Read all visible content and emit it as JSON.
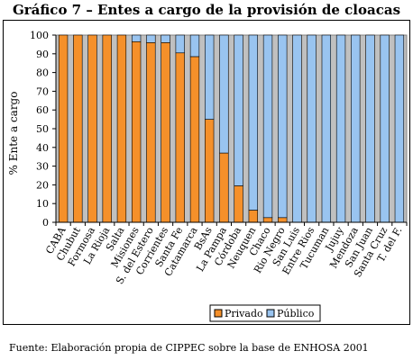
{
  "title": "Gráfico 7 – Entes a cargo de la provisión de cloacas",
  "source": "Fuente: Elaboración propia de CIPPEC sobre la base de ENHOSA 2001",
  "chart_data": {
    "type": "bar",
    "stacked": true,
    "title": "Gráfico 7 – Entes a cargo de la provisión de cloacas",
    "xlabel": "",
    "ylabel": "% Ente a cargo",
    "ylim": [
      0,
      100
    ],
    "yticks": [
      0,
      10,
      20,
      30,
      40,
      50,
      60,
      70,
      80,
      90,
      100
    ],
    "grid": false,
    "legend_position": "bottom-right",
    "plot_background": "#c0c0c0",
    "categories": [
      "CABA",
      "Chubut",
      "Formosa",
      "La Rioja",
      "Salta",
      "Misiones",
      "S. del Estero",
      "Corrientes",
      "Santa Fe",
      "Catamarca",
      "BsAs",
      "La Pampa",
      "Córdoba",
      "Neuquen",
      "Chaco",
      "Rio Negro",
      "San Luis",
      "Entre Rios",
      "Tucuman",
      "Jujuy",
      "Mendoza",
      "San Juan",
      "Santa Cruz",
      "T. del F."
    ],
    "series": [
      {
        "name": "Privado",
        "color": "#f5902a",
        "values": [
          100,
          100,
          100,
          100,
          100,
          96.5,
          96,
          96,
          90.5,
          88.5,
          55,
          37,
          19.5,
          6.5,
          2.5,
          2.5,
          0,
          0,
          0,
          0,
          0,
          0,
          0,
          0
        ]
      },
      {
        "name": "Público",
        "color": "#99c4f0",
        "values": [
          0,
          0,
          0,
          0,
          0,
          3.5,
          4,
          4,
          9.5,
          11.5,
          45,
          63,
          80.5,
          93.5,
          97.5,
          97.5,
          100,
          100,
          100,
          100,
          100,
          100,
          100,
          100
        ]
      }
    ]
  }
}
